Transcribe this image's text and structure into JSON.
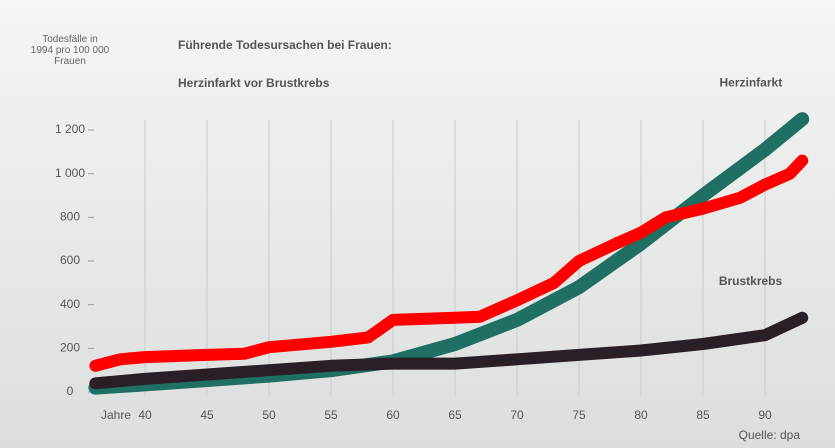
{
  "chart_data": {
    "type": "line",
    "title": "Führende Todesursachen bei Frauen:",
    "subtitle": "Herzinfarkt vor Brustkrebs",
    "y_label": "Todesfälle in 1994 pro 100 000 Frauen",
    "x_label": "Jahre",
    "source": "Quelle: dpa",
    "xlim": [
      36,
      94
    ],
    "xticks": [
      40,
      45,
      50,
      55,
      60,
      65,
      70,
      75,
      80,
      85,
      90
    ],
    "ylim": [
      0,
      1200
    ],
    "yticks": [
      0,
      200,
      400,
      600,
      800,
      {
        "value": 1000,
        "label": "1 000"
      },
      {
        "value": 1200,
        "label": "1 200"
      }
    ],
    "grid": true,
    "series": [
      {
        "name": "Herzinfarkt",
        "color": "#1f6f62",
        "x": [
          36,
          40,
          45,
          50,
          55,
          60,
          65,
          70,
          75,
          80,
          85,
          90,
          93
        ],
        "values": [
          20,
          35,
          55,
          75,
          100,
          140,
          220,
          330,
          480,
          680,
          900,
          1110,
          1250
        ]
      },
      {
        "name": "Brustkrebs",
        "color": "#2a1f26",
        "x": [
          36,
          40,
          45,
          50,
          55,
          60,
          65,
          70,
          75,
          80,
          85,
          90,
          93
        ],
        "values": [
          40,
          60,
          80,
          100,
          120,
          130,
          130,
          150,
          170,
          190,
          220,
          260,
          340
        ]
      },
      {
        "color": "#ff0000",
        "x": [
          36,
          38,
          40,
          45,
          48,
          50,
          55,
          58,
          60,
          65,
          67,
          70,
          73,
          75,
          78,
          80,
          82,
          85,
          88,
          90,
          92,
          93
        ],
        "values": [
          120,
          150,
          160,
          170,
          175,
          205,
          230,
          250,
          330,
          340,
          345,
          420,
          500,
          600,
          680,
          730,
          800,
          840,
          890,
          950,
          1000,
          1060
        ]
      }
    ]
  }
}
